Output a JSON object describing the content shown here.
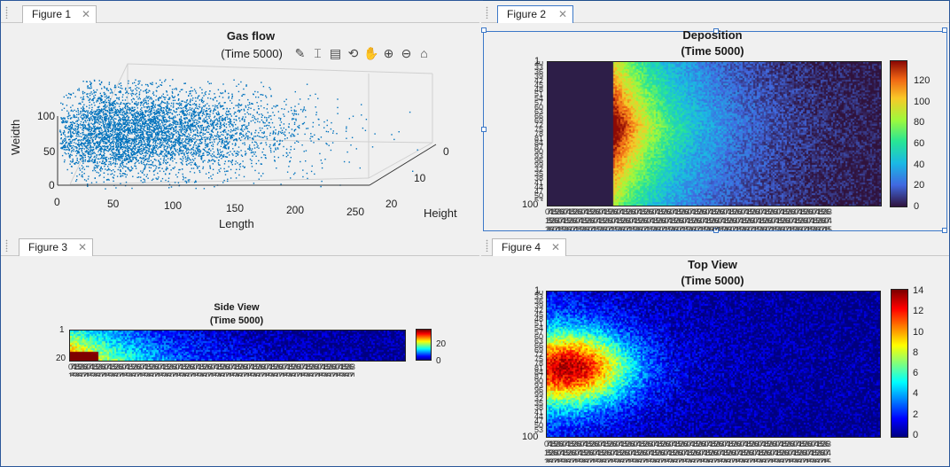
{
  "figures": [
    {
      "tab": "Figure 1",
      "title": "Gas flow",
      "subtitle": "(Time 5000)",
      "xlabel": "Length",
      "ylabel": "Weidth",
      "zlabel": "Height",
      "xticks": [
        "0",
        "50",
        "100",
        "150",
        "200",
        "250"
      ],
      "yticks": [
        "0",
        "50",
        "100"
      ],
      "zticks": [
        "0",
        "10",
        "20"
      ]
    },
    {
      "tab": "Figure 2",
      "title": "Deposition",
      "subtitle": "(Time 5000)",
      "yfirst": "1",
      "ylast": "100",
      "colorbar": [
        "120",
        "100",
        "80",
        "60",
        "40",
        "20",
        "0"
      ]
    },
    {
      "tab": "Figure 3",
      "title": "Side View",
      "subtitle": "(Time 5000)",
      "yfirst": "1",
      "ylast": "20",
      "colorbar": [
        "20",
        "0"
      ]
    },
    {
      "tab": "Figure 4",
      "title": "Top View",
      "subtitle": "(Time 5000)",
      "yfirst": "1",
      "ylast": "100",
      "colorbar": [
        "14",
        "12",
        "10",
        "8",
        "6",
        "4",
        "2",
        "0"
      ]
    }
  ],
  "toolbar": {
    "icons": [
      "brush-icon",
      "data-tip-icon",
      "legend-icon",
      "rotate-icon",
      "pan-icon",
      "zoom-in-icon",
      "zoom-out-icon",
      "home-icon"
    ],
    "glyphs": [
      "✎",
      "⌶",
      "▤",
      "⟲",
      "✋",
      "⊕",
      "⊖",
      "⌂"
    ]
  },
  "colors": {
    "scatter": "#0072bd",
    "heat_low": "#2a1f4a",
    "selection": "#3c78c8",
    "accent": "#1f4e8c"
  }
}
